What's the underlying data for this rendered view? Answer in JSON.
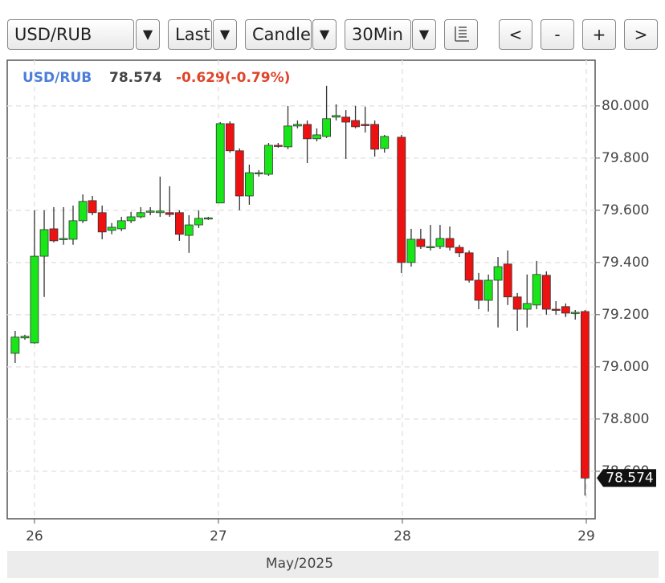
{
  "toolbar": {
    "symbol": "USD/RUB",
    "price_type": "Last",
    "chart_type": "Candle",
    "interval": "30Min",
    "arrow": "▼",
    "buttons": [
      "<",
      "-",
      "+",
      ">"
    ]
  },
  "chart_data": {
    "type": "candlestick",
    "title": "USD/RUB",
    "last_label": "78.574",
    "change_label": "-0.629(-0.79%)",
    "price_tag": "78.574",
    "xlabel": "May/2025",
    "x": [
      25.895,
      25.948,
      26.0,
      26.053,
      26.105,
      26.158,
      26.21,
      26.263,
      26.315,
      26.368,
      26.42,
      26.473,
      26.525,
      26.578,
      26.63,
      26.683,
      26.735,
      26.788,
      26.84,
      26.893,
      26.945,
      27.01,
      27.063,
      27.115,
      27.168,
      27.22,
      27.273,
      27.325,
      27.378,
      27.43,
      27.483,
      27.535,
      27.588,
      27.64,
      27.693,
      27.745,
      27.798,
      27.85,
      27.903,
      27.995,
      28.048,
      28.1,
      28.153,
      28.205,
      28.258,
      28.31,
      28.363,
      28.415,
      28.468,
      28.52,
      28.573,
      28.625,
      28.678,
      28.73,
      28.783,
      28.835,
      28.888,
      28.94,
      28.993
    ],
    "open": [
      79.052,
      79.111,
      79.092,
      79.424,
      79.529,
      79.489,
      79.489,
      79.56,
      79.637,
      79.591,
      79.523,
      79.529,
      79.56,
      79.575,
      79.594,
      79.591,
      79.591,
      79.591,
      79.504,
      79.544,
      79.569,
      79.628,
      79.932,
      79.828,
      79.655,
      79.741,
      79.738,
      79.849,
      79.843,
      79.923,
      79.929,
      79.874,
      79.883,
      79.957,
      79.957,
      79.944,
      79.929,
      79.929,
      79.837,
      79.88,
      79.4,
      79.489,
      79.461,
      79.461,
      79.492,
      79.458,
      79.437,
      79.332,
      79.255,
      79.332,
      79.394,
      79.268,
      79.221,
      79.237,
      79.351,
      79.221,
      79.231,
      79.206,
      79.212
    ],
    "high": [
      79.138,
      79.123,
      79.6,
      79.6,
      79.612,
      79.612,
      79.618,
      79.661,
      79.655,
      79.618,
      79.551,
      79.575,
      79.594,
      79.612,
      79.612,
      79.729,
      79.692,
      79.6,
      79.581,
      79.6,
      79.575,
      79.938,
      79.941,
      79.837,
      79.775,
      79.754,
      79.858,
      79.858,
      80.0,
      79.944,
      79.944,
      79.914,
      80.077,
      80.006,
      79.984,
      80.0,
      79.997,
      79.944,
      79.889,
      79.889,
      79.529,
      79.529,
      79.544,
      79.544,
      79.538,
      79.468,
      79.446,
      79.36,
      79.354,
      79.421,
      79.446,
      79.283,
      79.354,
      79.406,
      79.366,
      79.252,
      79.243,
      79.218,
      79.218
    ],
    "low": [
      79.015,
      79.104,
      79.089,
      79.268,
      79.477,
      79.468,
      79.468,
      79.551,
      79.581,
      79.489,
      79.508,
      79.52,
      79.551,
      79.569,
      79.581,
      79.575,
      79.575,
      79.483,
      79.437,
      79.532,
      79.563,
      79.628,
      79.821,
      79.6,
      79.621,
      79.729,
      79.732,
      79.84,
      79.834,
      79.914,
      79.781,
      79.864,
      79.877,
      79.944,
      79.797,
      79.914,
      79.898,
      79.806,
      79.821,
      79.36,
      79.384,
      79.452,
      79.446,
      79.452,
      79.446,
      79.421,
      79.323,
      79.221,
      79.212,
      79.151,
      79.237,
      79.138,
      79.151,
      79.221,
      79.2,
      79.2,
      79.191,
      79.181,
      78.507
    ],
    "close": [
      79.114,
      79.117,
      79.424,
      79.526,
      79.483,
      79.492,
      79.56,
      79.634,
      79.591,
      79.517,
      79.535,
      79.56,
      79.575,
      79.591,
      79.597,
      79.597,
      79.584,
      79.508,
      79.544,
      79.569,
      79.571,
      79.932,
      79.828,
      79.655,
      79.744,
      79.744,
      79.849,
      79.846,
      79.923,
      79.929,
      79.874,
      79.889,
      79.951,
      79.963,
      79.938,
      79.92,
      79.926,
      79.834,
      79.883,
      79.4,
      79.489,
      79.461,
      79.461,
      79.492,
      79.458,
      79.437,
      79.332,
      79.255,
      79.332,
      79.384,
      79.268,
      79.221,
      79.243,
      79.354,
      79.221,
      79.218,
      79.206,
      79.209,
      78.574
    ],
    "up_color": "#19e619",
    "down_color": "#ee1111",
    "xlim": [
      25.852,
      29.048
    ],
    "xticks": [
      26,
      27,
      28,
      29
    ],
    "ylim": [
      78.418,
      80.175
    ],
    "yticks": [
      {
        "value": 78.6,
        "label": "78.600"
      },
      {
        "value": 78.8,
        "label": "78.800"
      },
      {
        "value": 79,
        "label": "79.000"
      },
      {
        "value": 79.2,
        "label": "79.200"
      },
      {
        "value": 79.4,
        "label": "79.400"
      },
      {
        "value": 79.6,
        "label": "79.600"
      },
      {
        "value": 79.8,
        "label": "79.800"
      },
      {
        "value": 80,
        "label": "80.000"
      }
    ],
    "grid": true
  }
}
